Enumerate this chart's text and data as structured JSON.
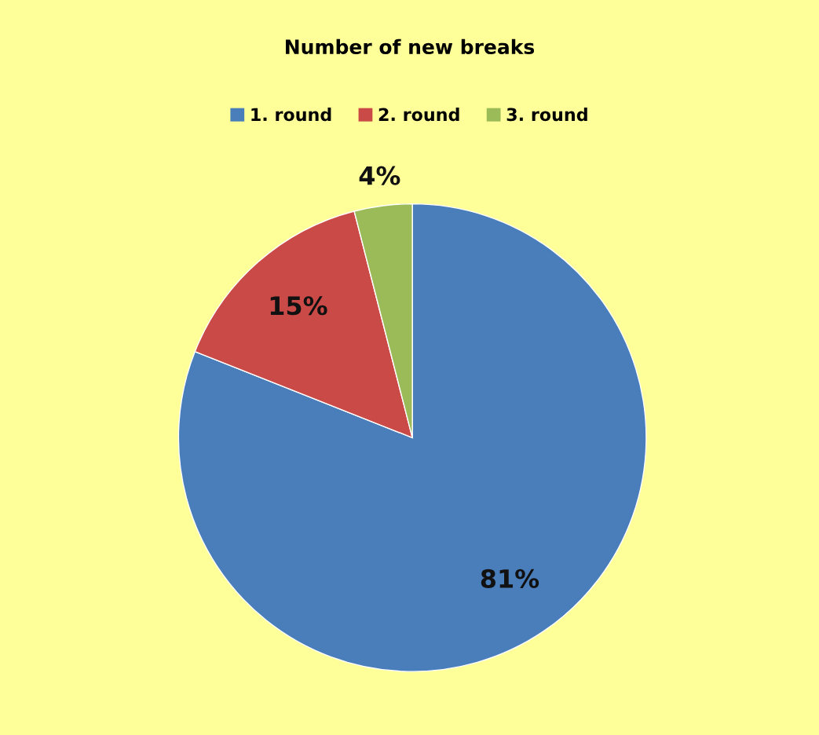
{
  "chart_data": {
    "type": "pie",
    "title": "Number of new breaks",
    "categories": [
      "1. round",
      "2. round",
      "3. round"
    ],
    "values": [
      81,
      15,
      4
    ],
    "colors": [
      "#4a7ebb",
      "#c94a47",
      "#9bbb59"
    ],
    "value_labels": [
      "81%",
      "15%",
      "4%"
    ],
    "legend": "top"
  }
}
